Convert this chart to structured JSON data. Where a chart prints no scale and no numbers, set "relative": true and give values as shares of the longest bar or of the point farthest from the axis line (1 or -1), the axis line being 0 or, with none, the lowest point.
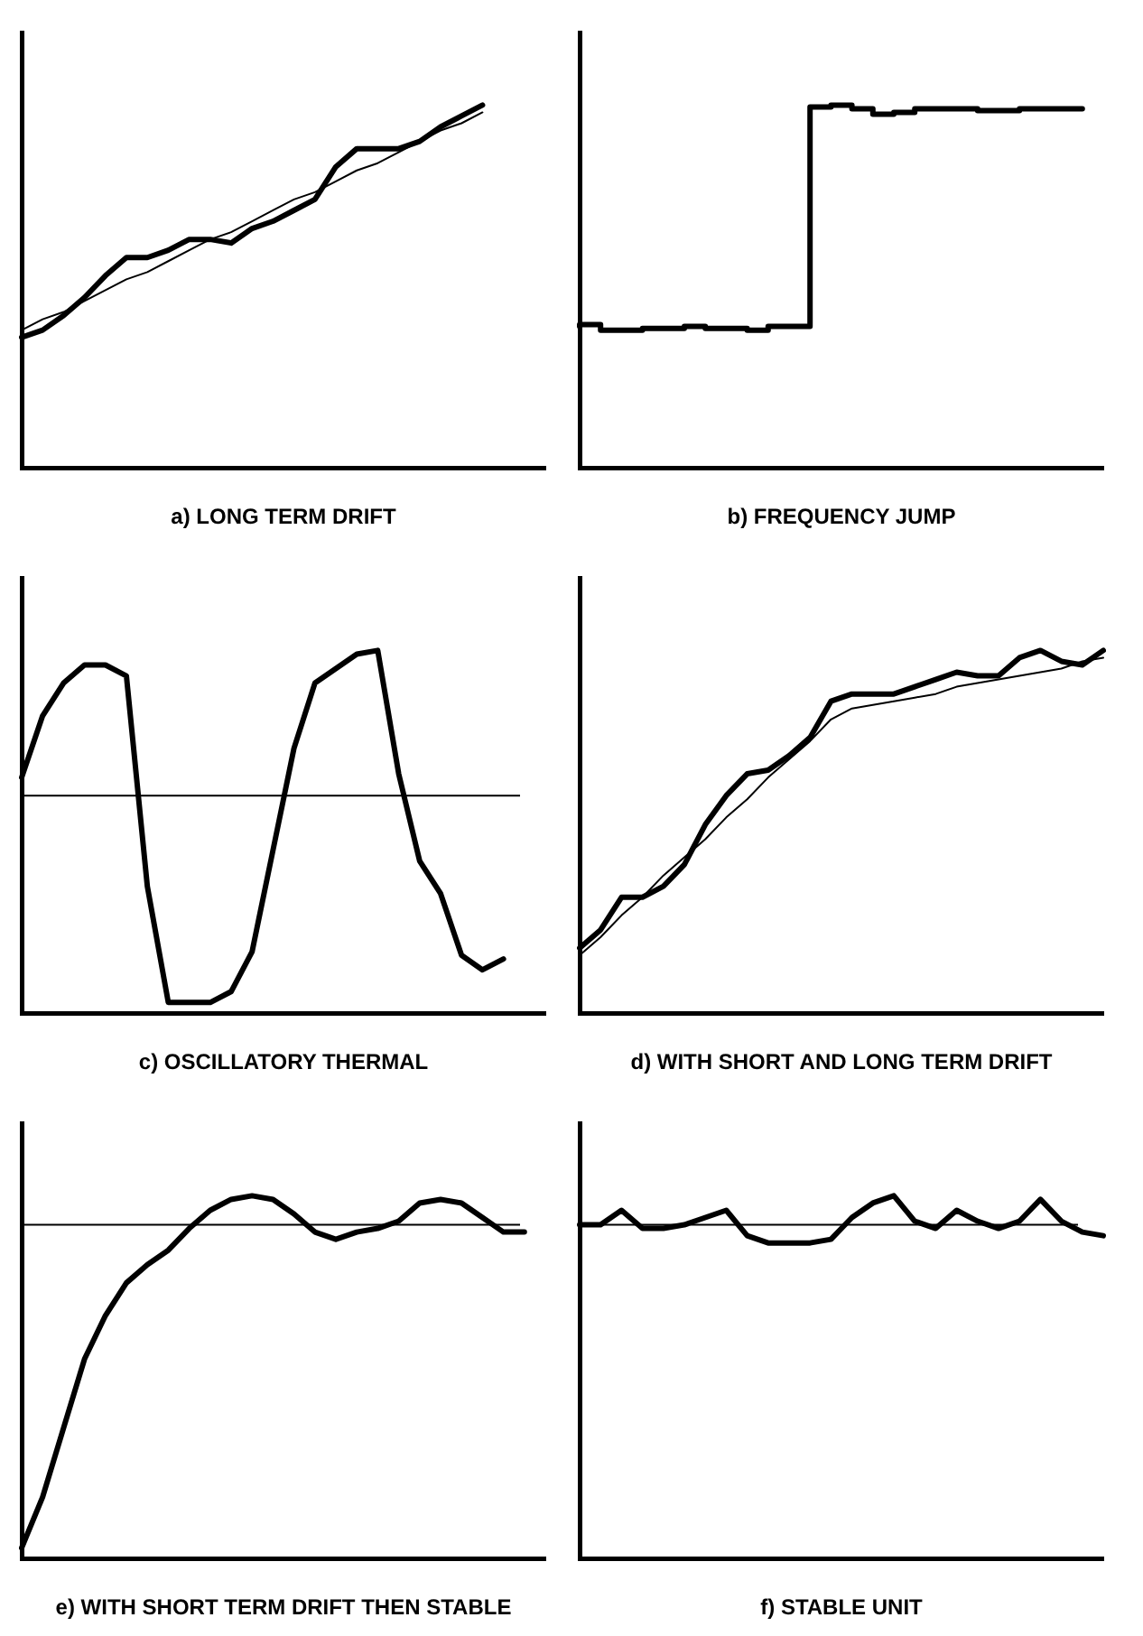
{
  "chart_data": [
    {
      "type": "line",
      "title": "a) LONG TERM DRIFT",
      "relative": true,
      "categories": [
        null,
        null,
        null,
        null,
        null,
        null,
        null,
        null,
        null,
        null,
        null,
        null,
        null,
        null,
        null,
        null,
        null,
        null,
        null,
        null,
        null,
        null,
        null,
        null,
        null,
        null
      ],
      "series": [
        {
          "color": "#000000",
          "values": [
            0.36,
            0.38,
            0.42,
            0.47,
            0.53,
            0.58,
            0.58,
            0.6,
            0.63,
            0.63,
            0.62,
            0.66,
            0.68,
            0.71,
            0.74,
            0.83,
            0.88,
            0.88,
            0.88,
            0.9,
            0.94,
            0.97,
            1.0,
            null,
            null,
            null
          ]
        },
        {
          "type": "line",
          "color": "#000000",
          "values": [
            0.38,
            0.41,
            0.43,
            0.46,
            0.49,
            0.52,
            0.54,
            0.57,
            0.6,
            0.63,
            0.65,
            0.68,
            0.71,
            0.74,
            0.76,
            0.79,
            0.82,
            0.84,
            0.87,
            0.9,
            0.93,
            0.95,
            0.98,
            null,
            null,
            null
          ]
        }
      ]
    },
    {
      "type": "line",
      "title": "b) FREQUENCY JUMP",
      "relative": true,
      "categories": [
        null,
        null,
        null,
        null,
        null,
        null,
        null,
        null,
        null,
        null,
        null,
        null,
        null,
        null,
        null,
        null,
        null,
        null,
        null,
        null,
        null,
        null,
        null,
        null,
        null,
        null
      ],
      "series": [
        {
          "type": "step",
          "color": "#000000",
          "values": [
            0.39,
            0.395,
            0.38,
            0.38,
            0.385,
            0.385,
            0.39,
            0.385,
            0.385,
            0.38,
            0.39,
            0.39,
            0.995,
            1.0,
            0.99,
            0.975,
            0.98,
            0.99,
            0.99,
            0.99,
            0.985,
            0.985,
            0.99,
            0.99,
            0.99,
            null
          ]
        }
      ]
    },
    {
      "type": "line",
      "title": "c) OSCILLATORY THERMAL",
      "relative": true,
      "categories": [
        null,
        null,
        null,
        null,
        null,
        null,
        null,
        null,
        null,
        null,
        null,
        null,
        null,
        null,
        null,
        null,
        null,
        null,
        null,
        null,
        null,
        null,
        null,
        null,
        null,
        null
      ],
      "series": [
        {
          "color": "#000000",
          "values": [
            0.65,
            0.82,
            0.91,
            0.96,
            0.96,
            0.93,
            0.35,
            0.03,
            0.03,
            0.03,
            0.06,
            0.17,
            0.45,
            0.73,
            0.91,
            0.95,
            0.99,
            1.0,
            0.66,
            0.42,
            0.33,
            0.16,
            0.12,
            0.15,
            null,
            null
          ]
        }
      ],
      "ref_lines": [
        {
          "axis": "y",
          "value": 0.6
        }
      ]
    },
    {
      "type": "line",
      "title": "d) WITH SHORT AND LONG TERM DRIFT",
      "relative": true,
      "categories": [
        null,
        null,
        null,
        null,
        null,
        null,
        null,
        null,
        null,
        null,
        null,
        null,
        null,
        null,
        null,
        null,
        null,
        null,
        null,
        null,
        null,
        null,
        null,
        null,
        null,
        null
      ],
      "series": [
        {
          "color": "#000000",
          "values": [
            0.18,
            0.23,
            0.32,
            0.32,
            0.35,
            0.41,
            0.52,
            0.6,
            0.66,
            0.67,
            0.71,
            0.76,
            0.86,
            0.88,
            0.88,
            0.88,
            0.9,
            0.92,
            0.94,
            0.93,
            0.93,
            0.98,
            1.0,
            0.97,
            0.96,
            1.0
          ]
        },
        {
          "type": "line",
          "color": "#000000",
          "values": [
            0.16,
            0.21,
            0.27,
            0.32,
            0.38,
            0.43,
            0.48,
            0.54,
            0.59,
            0.65,
            0.7,
            0.75,
            0.81,
            0.84,
            0.85,
            0.86,
            0.87,
            0.88,
            0.9,
            0.91,
            0.92,
            0.93,
            0.94,
            0.95,
            0.97,
            0.98
          ]
        }
      ]
    },
    {
      "type": "line",
      "title": "e) WITH SHORT TERM DRIFT THEN STABLE",
      "relative": true,
      "categories": [
        null,
        null,
        null,
        null,
        null,
        null,
        null,
        null,
        null,
        null,
        null,
        null,
        null,
        null,
        null,
        null,
        null,
        null,
        null,
        null,
        null,
        null,
        null,
        null,
        null,
        null
      ],
      "series": [
        {
          "color": "#000000",
          "values": [
            0.03,
            0.17,
            0.36,
            0.55,
            0.67,
            0.76,
            0.81,
            0.85,
            0.91,
            0.96,
            0.99,
            1.0,
            0.99,
            0.95,
            0.9,
            0.88,
            0.9,
            0.91,
            0.93,
            0.98,
            0.99,
            0.98,
            0.94,
            0.9,
            0.9,
            null
          ]
        }
      ],
      "ref_lines": [
        {
          "axis": "y",
          "value": 0.92
        }
      ]
    },
    {
      "type": "line",
      "title": "f) STABLE UNIT",
      "relative": true,
      "categories": [
        null,
        null,
        null,
        null,
        null,
        null,
        null,
        null,
        null,
        null,
        null,
        null,
        null,
        null,
        null,
        null,
        null,
        null,
        null,
        null,
        null,
        null,
        null,
        null,
        null,
        null
      ],
      "series": [
        {
          "color": "#000000",
          "values": [
            0.92,
            0.92,
            0.96,
            0.91,
            0.91,
            0.92,
            0.94,
            0.96,
            0.89,
            0.87,
            0.87,
            0.87,
            0.88,
            0.94,
            0.98,
            1.0,
            0.93,
            0.91,
            0.96,
            0.93,
            0.91,
            0.93,
            0.99,
            0.93,
            0.9,
            0.89
          ]
        }
      ],
      "ref_lines": [
        {
          "axis": "y",
          "value": 0.92
        }
      ]
    }
  ]
}
